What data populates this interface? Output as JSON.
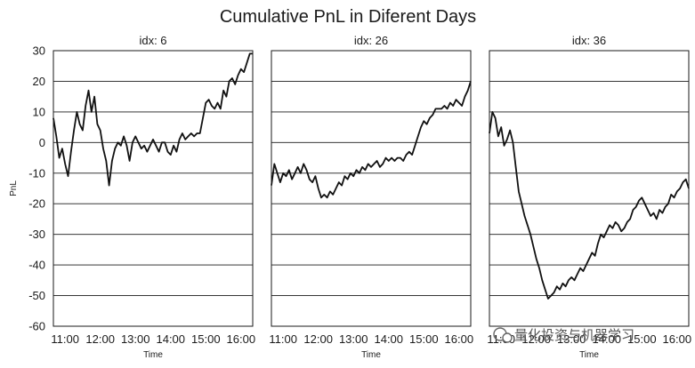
{
  "watermark": "量化投资与机器学习",
  "chart_data": {
    "type": "line",
    "title": "Cumulative PnL in Diferent Days",
    "shared_y": true,
    "ylabel": "PnL",
    "ylim": [
      -60,
      30
    ],
    "yticks": [
      30,
      20,
      10,
      0,
      -10,
      -20,
      -30,
      -40,
      -50,
      -60
    ],
    "grid": "horizontal",
    "subplots": [
      {
        "title": "idx: 6",
        "xlabel": "Time",
        "xlim": [
          "10:40",
          "16:20"
        ],
        "xticks": [
          "11:00",
          "12:00",
          "13:00",
          "14:00",
          "15:00",
          "16:00"
        ],
        "x": [
          "10:40",
          "10:45",
          "10:50",
          "10:55",
          "11:00",
          "11:05",
          "11:10",
          "11:15",
          "11:20",
          "11:25",
          "11:30",
          "11:35",
          "11:40",
          "11:45",
          "11:50",
          "11:55",
          "12:00",
          "12:05",
          "12:10",
          "12:15",
          "12:20",
          "12:25",
          "12:30",
          "12:35",
          "12:40",
          "12:45",
          "12:50",
          "12:55",
          "13:00",
          "13:05",
          "13:10",
          "13:15",
          "13:20",
          "13:25",
          "13:30",
          "13:35",
          "13:40",
          "13:45",
          "13:50",
          "13:55",
          "14:00",
          "14:05",
          "14:10",
          "14:15",
          "14:20",
          "14:25",
          "14:30",
          "14:35",
          "14:40",
          "14:45",
          "14:50",
          "14:55",
          "15:00",
          "15:05",
          "15:10",
          "15:15",
          "15:20",
          "15:25",
          "15:30",
          "15:35",
          "15:40",
          "15:45",
          "15:50",
          "15:55",
          "16:00",
          "16:05",
          "16:10",
          "16:15",
          "16:20"
        ],
        "values": [
          8,
          2,
          -5,
          -2,
          -7,
          -11,
          -3,
          4,
          10,
          6,
          4,
          12,
          17,
          10,
          15,
          6,
          4,
          -2,
          -6,
          -14,
          -6,
          -2,
          0,
          -1,
          2,
          -1,
          -6,
          0,
          2,
          0,
          -2,
          -1,
          -3,
          -1,
          1,
          -1,
          -3,
          0,
          0,
          -3,
          -4,
          -1,
          -3,
          1,
          3,
          1,
          2,
          3,
          2,
          3,
          3,
          8,
          13,
          14,
          12,
          11,
          13,
          11,
          17,
          15,
          20,
          21,
          19,
          22,
          24,
          23,
          26,
          29,
          29
        ]
      },
      {
        "title": "idx: 26",
        "xlabel": "Time",
        "xlim": [
          "10:40",
          "16:20"
        ],
        "xticks": [
          "11:00",
          "12:00",
          "13:00",
          "14:00",
          "15:00",
          "16:00"
        ],
        "x": [
          "10:40",
          "10:45",
          "10:50",
          "10:55",
          "11:00",
          "11:05",
          "11:10",
          "11:15",
          "11:20",
          "11:25",
          "11:30",
          "11:35",
          "11:40",
          "11:45",
          "11:50",
          "11:55",
          "12:00",
          "12:05",
          "12:10",
          "12:15",
          "12:20",
          "12:25",
          "12:30",
          "12:35",
          "12:40",
          "12:45",
          "12:50",
          "12:55",
          "13:00",
          "13:05",
          "13:10",
          "13:15",
          "13:20",
          "13:25",
          "13:30",
          "13:35",
          "13:40",
          "13:45",
          "13:50",
          "13:55",
          "14:00",
          "14:05",
          "14:10",
          "14:15",
          "14:20",
          "14:25",
          "14:30",
          "14:35",
          "14:40",
          "14:45",
          "14:50",
          "14:55",
          "15:00",
          "15:05",
          "15:10",
          "15:15",
          "15:20",
          "15:25",
          "15:30",
          "15:35",
          "15:40",
          "15:45",
          "15:50",
          "15:55",
          "16:00",
          "16:05",
          "16:10",
          "16:15",
          "16:20"
        ],
        "values": [
          -14,
          -7,
          -10,
          -13,
          -10,
          -11,
          -9,
          -12,
          -10,
          -8,
          -10,
          -7,
          -9,
          -12,
          -13,
          -11,
          -15,
          -18,
          -17,
          -18,
          -16,
          -17,
          -15,
          -13,
          -14,
          -11,
          -12,
          -10,
          -11,
          -9,
          -10,
          -8,
          -9,
          -7,
          -8,
          -7,
          -6,
          -8,
          -7,
          -5,
          -6,
          -5,
          -6,
          -5,
          -5,
          -6,
          -4,
          -3,
          -4,
          -1,
          2,
          5,
          7,
          6,
          8,
          9,
          11,
          11,
          11,
          12,
          11,
          13,
          12,
          14,
          13,
          12,
          15,
          17,
          20
        ]
      },
      {
        "title": "idx: 36",
        "xlabel": "Time",
        "xlim": [
          "10:40",
          "16:20"
        ],
        "xticks": [
          "11:00",
          "12:00",
          "13:00",
          "14:00",
          "15:00",
          "16:00"
        ],
        "x": [
          "10:40",
          "10:45",
          "10:50",
          "10:55",
          "11:00",
          "11:05",
          "11:10",
          "11:15",
          "11:20",
          "11:25",
          "11:30",
          "11:35",
          "11:40",
          "11:45",
          "11:50",
          "11:55",
          "12:00",
          "12:05",
          "12:10",
          "12:15",
          "12:20",
          "12:25",
          "12:30",
          "12:35",
          "12:40",
          "12:45",
          "12:50",
          "12:55",
          "13:00",
          "13:05",
          "13:10",
          "13:15",
          "13:20",
          "13:25",
          "13:30",
          "13:35",
          "13:40",
          "13:45",
          "13:50",
          "13:55",
          "14:00",
          "14:05",
          "14:10",
          "14:15",
          "14:20",
          "14:25",
          "14:30",
          "14:35",
          "14:40",
          "14:45",
          "14:50",
          "14:55",
          "15:00",
          "15:05",
          "15:10",
          "15:15",
          "15:20",
          "15:25",
          "15:30",
          "15:35",
          "15:40",
          "15:45",
          "15:50",
          "15:55",
          "16:00",
          "16:05",
          "16:10",
          "16:15",
          "16:20"
        ],
        "values": [
          3,
          10,
          8,
          2,
          5,
          -1,
          1,
          4,
          0,
          -8,
          -16,
          -20,
          -24,
          -27,
          -30,
          -34,
          -38,
          -41,
          -45,
          -48,
          -51,
          -50,
          -49,
          -47,
          -48,
          -46,
          -47,
          -45,
          -44,
          -45,
          -43,
          -41,
          -42,
          -40,
          -38,
          -36,
          -37,
          -33,
          -30,
          -31,
          -29,
          -27,
          -28,
          -26,
          -27,
          -29,
          -28,
          -26,
          -25,
          -22,
          -21,
          -19,
          -18,
          -20,
          -22,
          -24,
          -23,
          -25,
          -22,
          -23,
          -21,
          -20,
          -17,
          -18,
          -16,
          -15,
          -13,
          -12,
          -15
        ]
      }
    ]
  }
}
